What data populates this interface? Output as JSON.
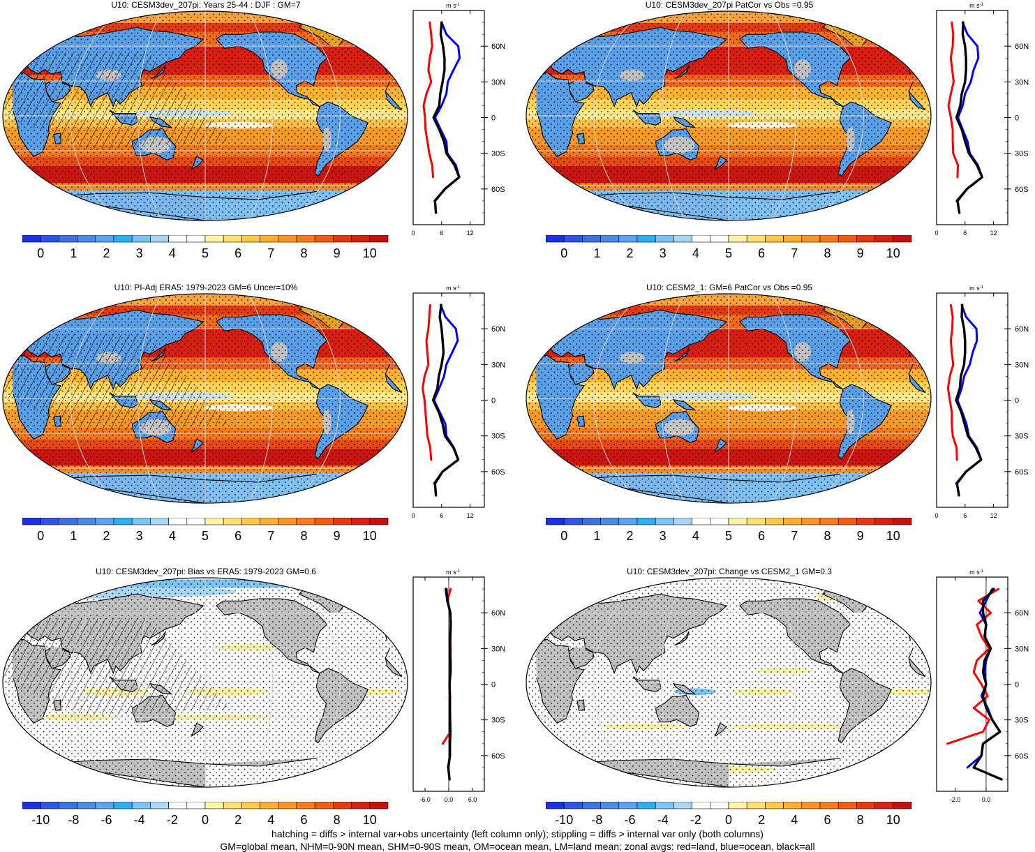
{
  "panels": [
    {
      "title": "U10: CESM3dev_207pi: Years 25-44 : DJF : GM=7",
      "kind": "abs",
      "hatch": true,
      "colorbar": {
        "labels": [
          "0",
          "1",
          "2",
          "3",
          "4",
          "5",
          "6",
          "7",
          "8",
          "9",
          "10"
        ]
      },
      "zonal": {
        "unit": "m s",
        "unit_sup": "-1",
        "xticks": [
          "0",
          "6",
          "12"
        ],
        "yticks": [
          "60N",
          "30N",
          "0",
          "30S",
          "60S"
        ]
      }
    },
    {
      "title": "U10: CESM3dev_207pi PatCor vs Obs =0.95",
      "kind": "abs",
      "hatch": false,
      "colorbar": {
        "labels": [
          "0",
          "1",
          "2",
          "3",
          "4",
          "5",
          "6",
          "7",
          "8",
          "9",
          "10"
        ]
      },
      "zonal": {
        "unit": "m s",
        "unit_sup": "-1",
        "xticks": [
          "0",
          "6",
          "12"
        ],
        "yticks": [
          "60N",
          "30N",
          "0",
          "30S",
          "60S"
        ]
      }
    },
    {
      "title": "U10: PI-Adj ERA5: 1979-2023 GM=6 Uncer=10%",
      "kind": "abs",
      "hatch": true,
      "colorbar": {
        "labels": [
          "0",
          "1",
          "2",
          "3",
          "4",
          "5",
          "6",
          "7",
          "8",
          "9",
          "10"
        ]
      },
      "zonal": {
        "unit": "m s",
        "unit_sup": "-1",
        "xticks": [
          "0",
          "6",
          "12"
        ],
        "yticks": [
          "60N",
          "30N",
          "0",
          "30S",
          "60S"
        ]
      }
    },
    {
      "title": "U10: CESM2_1: GM=6 PatCor vs Obs =0.95",
      "kind": "abs",
      "hatch": false,
      "colorbar": {
        "labels": [
          "0",
          "1",
          "2",
          "3",
          "4",
          "5",
          "6",
          "7",
          "8",
          "9",
          "10"
        ]
      },
      "zonal": {
        "unit": "m s",
        "unit_sup": "-1",
        "xticks": [
          "0",
          "6",
          "12"
        ],
        "yticks": [
          "60N",
          "30N",
          "0",
          "30S",
          "60S"
        ]
      }
    },
    {
      "title": "U10: CESM3dev_207pi: Bias vs ERA5: 1979-2023 GM=0.6",
      "kind": "diff",
      "hatch": true,
      "colorbar": {
        "labels": [
          "-10",
          "-8",
          "-6",
          "-4",
          "-2",
          "0",
          "2",
          "4",
          "6",
          "8",
          "10"
        ]
      },
      "zonal": {
        "unit": "m s",
        "unit_sup": "-1",
        "xticks": [
          "-6.0",
          "0.0",
          "6.0"
        ],
        "yticks": [
          "60N",
          "30N",
          "0",
          "30S",
          "60S"
        ]
      }
    },
    {
      "title": "U10: CESM3dev_207pi: Change vs CESM2_1 GM=0.3",
      "kind": "diff2",
      "hatch": false,
      "colorbar": {
        "labels": [
          "-10",
          "-8",
          "-6",
          "-4",
          "-2",
          "0",
          "2",
          "4",
          "6",
          "8",
          "10"
        ]
      },
      "zonal": {
        "unit": "m s",
        "unit_sup": "-1",
        "xticks": [
          "-2.0",
          "0.0"
        ],
        "yticks": [
          "60N",
          "30N",
          "0",
          "30S",
          "60S"
        ]
      }
    }
  ],
  "colors": {
    "colorbar_abs": [
      "#1a2fe6",
      "#2f55e8",
      "#3b71e0",
      "#4a8be6",
      "#5aa3ee",
      "#2ab0f0",
      "#7cc4f2",
      "#a8d6f4",
      "#ffffff",
      "#ffffff",
      "#fff3a8",
      "#ffe070",
      "#ffc845",
      "#ffae2e",
      "#ff9420",
      "#ff7a18",
      "#f55a12",
      "#e8380e",
      "#d91f10",
      "#c8100e"
    ],
    "colorbar_diff": [
      "#1a2fe6",
      "#2f55e8",
      "#3b71e0",
      "#4a8be6",
      "#5aa3ee",
      "#2ab0f0",
      "#7cc4f2",
      "#a8d6f4",
      "#ffffff",
      "#ffffff",
      "#fff3a8",
      "#ffe070",
      "#ffc845",
      "#ffae2e",
      "#ff9420",
      "#ff7a18",
      "#f55a12",
      "#e8380e",
      "#d91f10",
      "#c8100e"
    ],
    "land": "#bdbdbd",
    "zonal_land": "#ff0000",
    "zonal_ocean": "#0000ff",
    "zonal_all": "#000000"
  },
  "chart_data": [
    {
      "type": "line",
      "title": "U10: CESM3dev_207pi: Years 25-44 : DJF : GM=7",
      "xlabel": "m s-1",
      "ylim": [
        "90S",
        "90N"
      ],
      "xlim": [
        0,
        15
      ],
      "lat": [
        80,
        70,
        60,
        50,
        40,
        30,
        20,
        10,
        0,
        -10,
        -20,
        -30,
        -40,
        -50,
        -60,
        -70,
        -80
      ],
      "series": [
        {
          "name": "land",
          "values": [
            3.5,
            3.8,
            4.0,
            3.5,
            3.2,
            3.8,
            2.8,
            2.2,
            2.5,
            2.6,
            3.0,
            3.4,
            4.0,
            4.2,
            null,
            4.3,
            null
          ]
        },
        {
          "name": "ocean",
          "values": [
            6.0,
            7.0,
            9.5,
            9.8,
            8.5,
            7.3,
            7.0,
            6.0,
            4.6,
            5.8,
            7.0,
            7.2,
            9.0,
            9.7,
            6.7,
            4.5,
            null
          ]
        },
        {
          "name": "all",
          "values": [
            6.0,
            5.8,
            6.3,
            6.6,
            6.6,
            6.2,
            5.7,
            5.5,
            4.3,
            5.5,
            6.5,
            7.0,
            8.7,
            9.7,
            6.7,
            4.6,
            4.8
          ]
        }
      ]
    },
    {
      "type": "line",
      "title": "U10: CESM3dev_207pi PatCor vs Obs =0.95",
      "xlabel": "m s-1",
      "ylim": [
        "90S",
        "90N"
      ],
      "xlim": [
        0,
        15
      ],
      "lat": [
        80,
        70,
        60,
        50,
        40,
        30,
        20,
        10,
        0,
        -10,
        -20,
        -30,
        -40,
        -50,
        -60,
        -70,
        -80
      ],
      "series": [
        {
          "name": "land",
          "values": [
            3.2,
            3.5,
            3.4,
            3.0,
            3.3,
            3.6,
            3.0,
            2.5,
            3.0,
            3.4,
            3.4,
            3.5,
            4.5,
            4.4,
            null,
            4.5,
            null
          ]
        },
        {
          "name": "ocean",
          "values": [
            5.5,
            6.5,
            8.6,
            8.8,
            7.8,
            7.2,
            6.0,
            5.5,
            4.5,
            5.5,
            6.5,
            7.0,
            8.7,
            9.6,
            6.4,
            4.2,
            null
          ]
        },
        {
          "name": "all",
          "values": [
            5.6,
            5.5,
            6.0,
            6.2,
            6.2,
            6.0,
            5.3,
            5.0,
            4.2,
            5.3,
            6.0,
            6.8,
            8.5,
            9.6,
            6.4,
            4.4,
            4.8
          ]
        }
      ]
    },
    {
      "type": "line",
      "title": "U10: PI-Adj ERA5: 1979-2023 GM=6 Uncer=10%",
      "xlabel": "m s-1",
      "ylim": [
        "90S",
        "90N"
      ],
      "xlim": [
        0,
        15
      ],
      "lat": [
        80,
        70,
        60,
        50,
        40,
        30,
        20,
        10,
        0,
        -10,
        -20,
        -30,
        -40,
        -50,
        -60,
        -70,
        -80
      ],
      "series": [
        {
          "name": "land",
          "values": [
            3.6,
            3.4,
            3.2,
            2.8,
            3.0,
            3.2,
            2.4,
            2.0,
            2.4,
            2.6,
            2.8,
            3.0,
            3.6,
            3.8,
            null,
            4.4,
            null
          ]
        },
        {
          "name": "ocean",
          "values": [
            5.8,
            6.8,
            9.0,
            9.4,
            8.2,
            7.0,
            6.5,
            5.5,
            4.4,
            5.6,
            6.8,
            7.0,
            8.6,
            9.5,
            6.2,
            4.4,
            null
          ]
        },
        {
          "name": "all",
          "values": [
            5.9,
            5.6,
            6.0,
            6.2,
            6.4,
            6.0,
            5.4,
            5.1,
            4.2,
            5.4,
            6.2,
            6.7,
            8.5,
            9.5,
            6.2,
            4.6,
            4.8
          ]
        }
      ]
    },
    {
      "type": "line",
      "title": "U10: CESM2_1: GM=6 PatCor vs Obs =0.95",
      "xlabel": "m s-1",
      "ylim": [
        "90S",
        "90N"
      ],
      "xlim": [
        0,
        15
      ],
      "lat": [
        80,
        70,
        60,
        50,
        40,
        30,
        20,
        10,
        0,
        -10,
        -20,
        -30,
        -40,
        -50,
        -60,
        -70,
        -80
      ],
      "series": [
        {
          "name": "land",
          "values": [
            3.0,
            3.4,
            3.3,
            3.0,
            3.2,
            3.5,
            2.8,
            2.4,
            2.8,
            3.2,
            3.2,
            3.4,
            4.2,
            4.3,
            null,
            4.4,
            null
          ]
        },
        {
          "name": "ocean",
          "values": [
            5.3,
            6.2,
            8.4,
            8.5,
            7.6,
            7.0,
            5.8,
            5.3,
            4.4,
            5.4,
            6.3,
            6.8,
            8.5,
            9.4,
            6.2,
            4.1,
            null
          ]
        },
        {
          "name": "all",
          "values": [
            5.4,
            5.3,
            5.8,
            6.0,
            6.0,
            5.8,
            5.1,
            4.9,
            4.1,
            5.2,
            5.9,
            6.6,
            8.3,
            9.4,
            6.2,
            4.3,
            4.7
          ]
        }
      ]
    },
    {
      "type": "line",
      "title": "U10: CESM3dev_207pi: Bias vs ERA5: 1979-2023 GM=0.6",
      "xlabel": "m s-1",
      "ylim": [
        "90S",
        "90N"
      ],
      "xlim": [
        -9,
        9
      ],
      "lat": [
        80,
        70,
        60,
        50,
        40,
        30,
        20,
        10,
        0,
        -10,
        -20,
        -30,
        -40,
        -50,
        -60,
        -70,
        -80
      ],
      "series": [
        {
          "name": "land",
          "values": [
            0.5,
            -0.4,
            0.4,
            0.5,
            0.3,
            0.5,
            0.4,
            0.3,
            0.2,
            0.2,
            0.3,
            0.4,
            0.4,
            -1.5,
            null,
            -0.2,
            null
          ]
        },
        {
          "name": "ocean",
          "values": [
            -0.8,
            -0.4,
            0.4,
            0.5,
            0.4,
            0.3,
            0.5,
            0.5,
            0.2,
            0.3,
            0.3,
            0.3,
            0.4,
            0.3,
            0.3,
            -0.2,
            null
          ]
        },
        {
          "name": "all",
          "values": [
            -0.6,
            -0.3,
            0.4,
            0.5,
            0.4,
            0.3,
            0.4,
            0.4,
            0.2,
            0.3,
            0.3,
            0.3,
            0.4,
            0.3,
            0.3,
            -0.1,
            0.2
          ]
        }
      ]
    },
    {
      "type": "line",
      "title": "U10: CESM3dev_207pi: Change vs CESM2_1 GM=0.3",
      "xlabel": "m s-1",
      "ylim": [
        "90S",
        "90N"
      ],
      "xlim": [
        -3.2,
        1.4
      ],
      "lat": [
        80,
        70,
        60,
        50,
        40,
        30,
        20,
        10,
        0,
        -10,
        -20,
        -30,
        -40,
        -50,
        -60,
        -70,
        -80
      ],
      "series": [
        {
          "name": "land",
          "values": [
            0.8,
            -0.5,
            0.3,
            -0.6,
            -0.3,
            0.2,
            -0.6,
            -0.8,
            -0.3,
            0.1,
            -0.8,
            0.2,
            -0.2,
            -2.5,
            null,
            0.8,
            null
          ]
        },
        {
          "name": "ocean",
          "values": [
            0.4,
            0.0,
            -0.4,
            0.0,
            -0.1,
            0.3,
            0.0,
            -0.1,
            0.0,
            -0.3,
            0.1,
            0.4,
            0.9,
            -0.2,
            -0.3,
            -1.2,
            null
          ]
        },
        {
          "name": "all",
          "values": [
            0.5,
            -0.2,
            -0.2,
            0.0,
            -0.1,
            0.3,
            -0.1,
            -0.2,
            0.0,
            -0.2,
            0.0,
            0.4,
            0.9,
            -0.2,
            -0.3,
            -0.8,
            1.0
          ]
        }
      ]
    }
  ],
  "footer": {
    "line1": "hatching = diffs > internal var+obs uncertainty (left column only); stippling = diffs > internal var only (both columns)",
    "line2": "GM=global mean, NHM=0-90N mean, SHM=0-90S mean, OM=ocean mean, LM=land mean; zonal avgs: red=land, blue=ocean, black=all"
  }
}
